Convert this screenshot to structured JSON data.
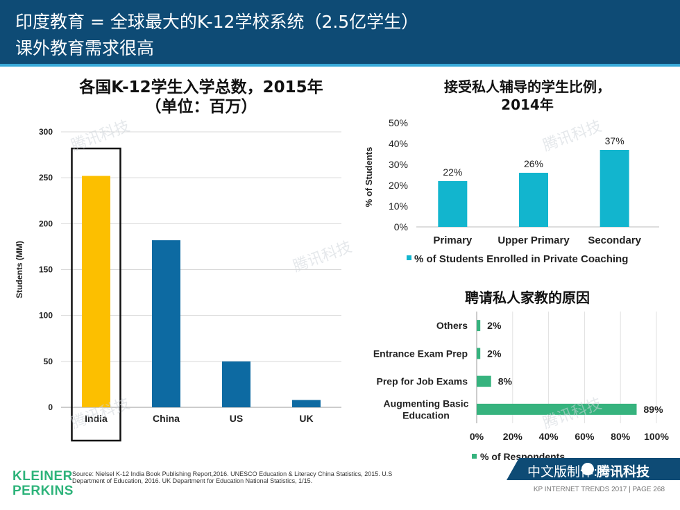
{
  "header": {
    "line1": "印度教育 = 全球最大的K-12学校系统（2.5亿学生）",
    "line2": "课外教育需求很高"
  },
  "watermark": "腾讯科技",
  "chart_data": [
    {
      "type": "bar",
      "title": "各国K-12学生入学总数，2015年",
      "subtitle": "（单位：百万）",
      "ylabel": "Students (MM)",
      "categories": [
        "India",
        "China",
        "US",
        "UK"
      ],
      "values": [
        252,
        182,
        50,
        8
      ],
      "ylim": [
        0,
        300
      ],
      "yticks": [
        "0",
        "50",
        "100",
        "150",
        "200",
        "250",
        "300"
      ],
      "grid": true,
      "colors": {
        "highlight": "#fcbf00",
        "default": "#0d6aa2"
      },
      "highlight": "India"
    },
    {
      "type": "bar",
      "title": "接受私人辅导的学生比例，",
      "subtitle": "2014年",
      "ylabel": "% of Students",
      "categories": [
        "Primary",
        "Upper Primary",
        "Secondary"
      ],
      "values": [
        22,
        26,
        37
      ],
      "data_labels": [
        "22%",
        "26%",
        "37%"
      ],
      "ylim": [
        0,
        50
      ],
      "yticks": [
        "0%",
        "10%",
        "20%",
        "30%",
        "40%",
        "50%"
      ],
      "legend": "% of Students Enrolled in Private Coaching",
      "legend_position": "bottom",
      "color": "#12b5ce"
    },
    {
      "type": "bar",
      "orientation": "horizontal",
      "title": "聘请私人家教的原因",
      "categories": [
        "Others",
        "Entrance Exam Prep",
        "Prep for Job Exams",
        "Augmenting Basic Education"
      ],
      "category_lines": [
        [
          "Others"
        ],
        [
          "Entrance Exam Prep"
        ],
        [
          "Prep for Job Exams"
        ],
        [
          "Augmenting Basic",
          "Education"
        ]
      ],
      "values": [
        2,
        2,
        8,
        89
      ],
      "data_labels": [
        "2%",
        "2%",
        "8%",
        "89%"
      ],
      "xlim": [
        0,
        100
      ],
      "xticks": [
        "0%",
        "20%",
        "40%",
        "60%",
        "80%",
        "100%"
      ],
      "legend": "% of Respondents",
      "legend_position": "bottom",
      "color": "#36b37e"
    }
  ],
  "footer": {
    "source": "Source: Nielsel K-12 India Book Publishing Report,2016. UNESCO Education & Literacy China Statistics, 2015. U.S Department of Education, 2016. UK Department for Education National Statistics, 1/15.",
    "logo_line1": "KLEINER",
    "logo_line2": "PERKINS",
    "right_text": "KP INTERNET TRENDS 2017  |  PAGE 268",
    "cn_label": "中文版制作:",
    "cn_brand": "腾讯科技"
  }
}
